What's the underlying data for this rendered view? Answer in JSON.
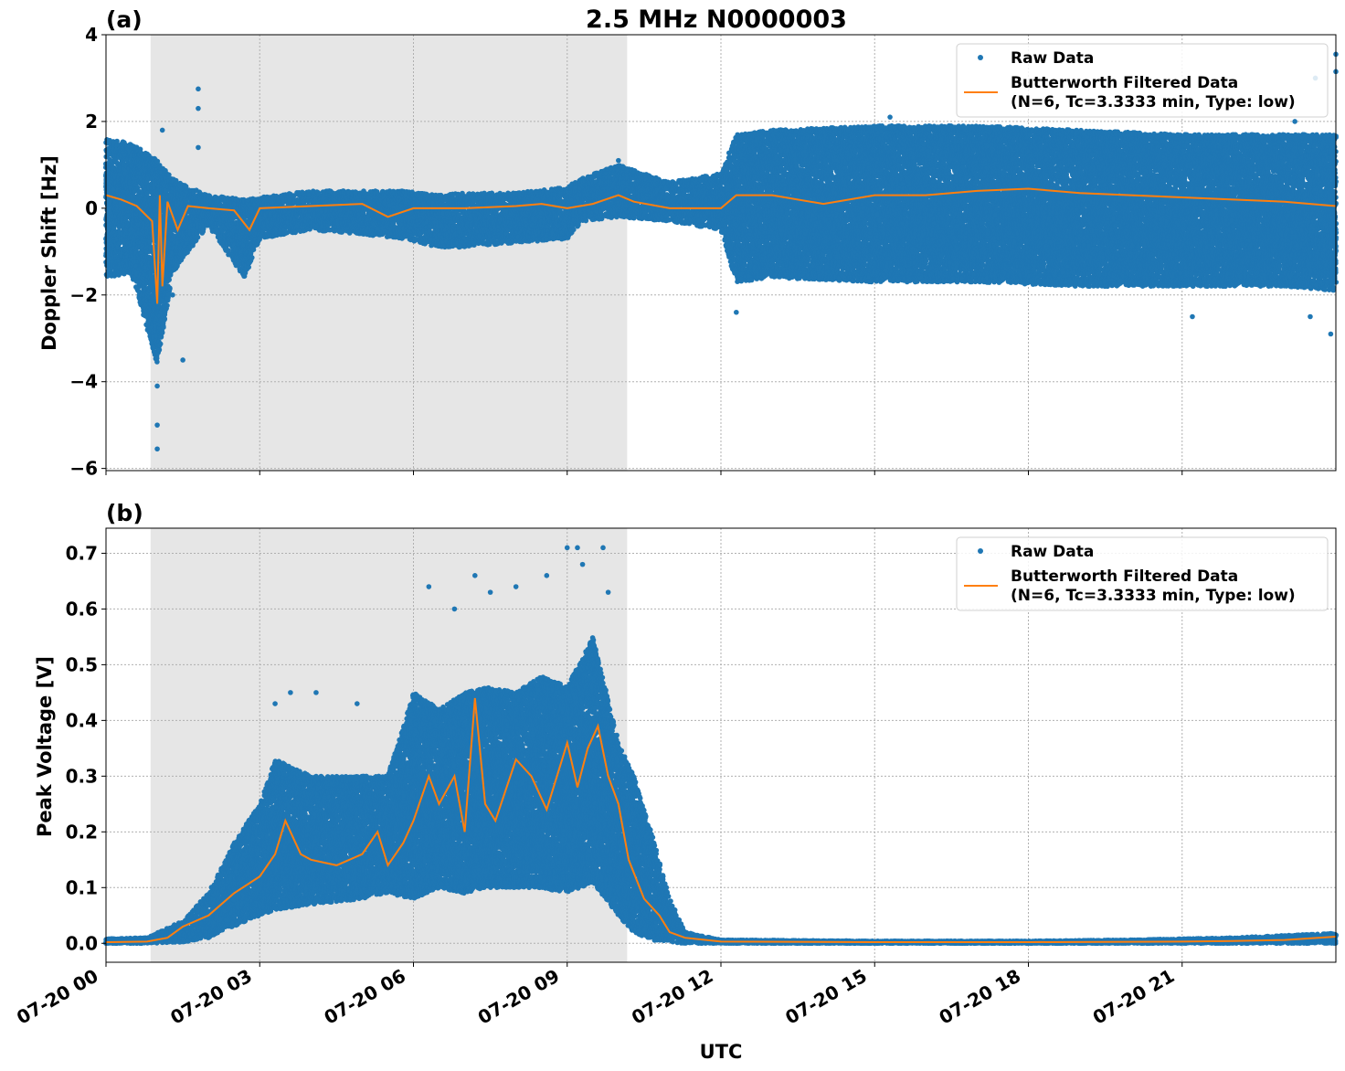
{
  "figure": {
    "title": "2.5 MHz N0000003",
    "xlabel": "UTC"
  },
  "chart_data": [
    {
      "type": "scatter",
      "panel_label": "(a)",
      "ylabel": "Doppler Shift [Hz]",
      "xlim": [
        0,
        24
      ],
      "ylim": [
        -6.05,
        4
      ],
      "yticks": [
        4,
        2,
        0,
        -2,
        -4,
        -6
      ],
      "ytick_labels": [
        "4",
        "2",
        "0",
        "−2",
        "−4",
        "−6"
      ],
      "xticks": [
        0,
        3,
        6,
        9,
        12,
        15,
        18,
        21
      ],
      "xtick_labels": [],
      "grid": true,
      "shaded_span": [
        0.87,
        10.17
      ],
      "legend": {
        "position": "top-right",
        "raw_label": "Raw Data",
        "filtered_label_line1": "Butterworth Filtered Data",
        "filtered_label_line2": "(N=6, Tc=3.3333 min, Type: low)"
      },
      "series": [
        {
          "name": "Raw Data",
          "style": "points",
          "color": "#1f77b4",
          "x": [
            0,
            0.5,
            1.0,
            1.3,
            1.6,
            2.0,
            2.7,
            3.0,
            4.0,
            5.0,
            5.8,
            6.5,
            7.0,
            8.0,
            9.0,
            9.3,
            10.0,
            11.0,
            12.0,
            12.3,
            13.0,
            15.0,
            17.0,
            19.0,
            21.0,
            23.0,
            24.0
          ],
          "y_upper": [
            1.6,
            1.5,
            1.1,
            0.7,
            0.5,
            0.3,
            0.2,
            0.25,
            0.4,
            0.4,
            0.4,
            0.3,
            0.35,
            0.35,
            0.5,
            0.7,
            1.0,
            0.6,
            0.8,
            1.7,
            1.8,
            1.9,
            1.9,
            1.8,
            1.7,
            1.7,
            1.7
          ],
          "y_lower": [
            -1.6,
            -1.5,
            -3.6,
            -1.5,
            -1.0,
            -0.4,
            -1.6,
            -0.7,
            -0.5,
            -0.6,
            -0.7,
            -0.9,
            -0.9,
            -0.8,
            -0.7,
            -0.3,
            -0.2,
            -0.3,
            -0.5,
            -1.7,
            -1.6,
            -1.7,
            -1.7,
            -1.8,
            -1.8,
            -1.8,
            -1.9
          ],
          "outliers": [
            [
              1.0,
              -5.55
            ],
            [
              1.0,
              -5.0
            ],
            [
              1.0,
              -4.1
            ],
            [
              1.1,
              1.8
            ],
            [
              1.8,
              2.75
            ],
            [
              1.8,
              2.3
            ],
            [
              1.8,
              1.4
            ],
            [
              1.5,
              -3.5
            ],
            [
              1.3,
              -2.0
            ],
            [
              12.3,
              -2.4
            ],
            [
              15.3,
              2.1
            ],
            [
              23.2,
              2.0
            ],
            [
              23.6,
              3.0
            ],
            [
              24.0,
              3.55
            ],
            [
              24.0,
              3.15
            ],
            [
              23.9,
              -2.9
            ],
            [
              23.5,
              -2.5
            ],
            [
              21.2,
              -2.5
            ],
            [
              10.0,
              1.1
            ]
          ]
        },
        {
          "name": "Butterworth Filtered Data",
          "style": "line",
          "color": "#ff7f0e",
          "x": [
            0,
            0.3,
            0.6,
            0.9,
            1.0,
            1.05,
            1.1,
            1.2,
            1.4,
            1.6,
            2.0,
            2.5,
            2.8,
            3.0,
            4.0,
            5.0,
            5.5,
            6.0,
            7.0,
            8.0,
            8.5,
            9.0,
            9.5,
            10.0,
            10.3,
            11.0,
            12.0,
            12.3,
            13.0,
            14.0,
            15.0,
            16.0,
            17.0,
            18.0,
            19.0,
            20.0,
            21.0,
            22.0,
            23.0,
            24.0
          ],
          "y": [
            0.3,
            0.2,
            0.05,
            -0.3,
            -2.2,
            0.3,
            -1.8,
            0.15,
            -0.5,
            0.05,
            0.0,
            -0.05,
            -0.5,
            0.0,
            0.05,
            0.1,
            -0.2,
            0.0,
            0.0,
            0.05,
            0.1,
            0.0,
            0.1,
            0.3,
            0.15,
            0.0,
            0.0,
            0.3,
            0.3,
            0.1,
            0.3,
            0.3,
            0.4,
            0.45,
            0.35,
            0.3,
            0.25,
            0.2,
            0.15,
            0.05
          ]
        }
      ]
    },
    {
      "type": "scatter",
      "panel_label": "(b)",
      "ylabel": "Peak Voltage [V]",
      "xlim": [
        0,
        24
      ],
      "ylim": [
        -0.034,
        0.745
      ],
      "yticks": [
        0.0,
        0.1,
        0.2,
        0.3,
        0.4,
        0.5,
        0.6,
        0.7
      ],
      "ytick_labels": [
        "0.0",
        "0.1",
        "0.2",
        "0.3",
        "0.4",
        "0.5",
        "0.6",
        "0.7"
      ],
      "xticks": [
        0,
        3,
        6,
        9,
        12,
        15,
        18,
        21
      ],
      "xtick_labels": [
        "07-20 00",
        "07-20 03",
        "07-20 06",
        "07-20 09",
        "07-20 12",
        "07-20 15",
        "07-20 18",
        "07-20 21"
      ],
      "grid": true,
      "shaded_span": [
        0.87,
        10.17
      ],
      "legend": {
        "position": "top-right",
        "raw_label": "Raw Data",
        "filtered_label_line1": "Butterworth Filtered Data",
        "filtered_label_line2": "(N=6, Tc=3.3333 min, Type: low)"
      },
      "series": [
        {
          "name": "Raw Data",
          "style": "points",
          "color": "#1f77b4",
          "x": [
            0,
            0.8,
            1.5,
            2.0,
            2.5,
            3.0,
            3.3,
            4.0,
            5.0,
            5.5,
            6.0,
            6.5,
            7.0,
            7.5,
            8.0,
            8.5,
            9.0,
            9.5,
            10.0,
            10.3,
            10.7,
            11.0,
            11.3,
            12.0,
            15.0,
            18.0,
            20.0,
            22.0,
            24.0
          ],
          "y_upper": [
            0.008,
            0.01,
            0.04,
            0.09,
            0.18,
            0.25,
            0.33,
            0.3,
            0.3,
            0.3,
            0.45,
            0.42,
            0.45,
            0.46,
            0.45,
            0.48,
            0.46,
            0.55,
            0.36,
            0.3,
            0.18,
            0.08,
            0.02,
            0.006,
            0.004,
            0.004,
            0.006,
            0.01,
            0.018
          ],
          "y_lower": [
            0.0,
            0.0,
            0.002,
            0.01,
            0.03,
            0.05,
            0.06,
            0.07,
            0.08,
            0.09,
            0.08,
            0.1,
            0.09,
            0.1,
            0.1,
            0.1,
            0.09,
            0.11,
            0.05,
            0.02,
            0.005,
            0.0,
            0.0,
            0.0,
            0.0,
            0.0,
            0.0,
            0.0,
            0.0
          ],
          "outliers": [
            [
              3.3,
              0.43
            ],
            [
              3.6,
              0.45
            ],
            [
              4.1,
              0.45
            ],
            [
              4.9,
              0.43
            ],
            [
              6.3,
              0.64
            ],
            [
              6.8,
              0.6
            ],
            [
              7.2,
              0.66
            ],
            [
              7.5,
              0.63
            ],
            [
              8.0,
              0.64
            ],
            [
              8.6,
              0.66
            ],
            [
              9.0,
              0.71
            ],
            [
              9.2,
              0.71
            ],
            [
              9.3,
              0.68
            ],
            [
              9.7,
              0.71
            ],
            [
              9.8,
              0.63
            ],
            [
              10.2,
              0.31
            ]
          ]
        },
        {
          "name": "Butterworth Filtered Data",
          "style": "line",
          "color": "#ff7f0e",
          "x": [
            0,
            0.8,
            1.2,
            1.5,
            2.0,
            2.5,
            3.0,
            3.3,
            3.5,
            3.8,
            4.0,
            4.5,
            5.0,
            5.3,
            5.5,
            5.8,
            6.0,
            6.3,
            6.5,
            6.8,
            7.0,
            7.2,
            7.4,
            7.6,
            8.0,
            8.3,
            8.6,
            9.0,
            9.2,
            9.4,
            9.6,
            9.8,
            10.0,
            10.2,
            10.5,
            10.8,
            11.0,
            11.3,
            12.0,
            15.0,
            18.0,
            21.0,
            22.0,
            23.0,
            24.0
          ],
          "y": [
            0.002,
            0.003,
            0.01,
            0.03,
            0.05,
            0.09,
            0.12,
            0.16,
            0.22,
            0.16,
            0.15,
            0.14,
            0.16,
            0.2,
            0.14,
            0.18,
            0.22,
            0.3,
            0.25,
            0.3,
            0.2,
            0.44,
            0.25,
            0.22,
            0.33,
            0.3,
            0.24,
            0.36,
            0.28,
            0.35,
            0.39,
            0.3,
            0.25,
            0.15,
            0.08,
            0.05,
            0.02,
            0.01,
            0.003,
            0.002,
            0.002,
            0.003,
            0.004,
            0.006,
            0.012
          ]
        }
      ]
    }
  ]
}
